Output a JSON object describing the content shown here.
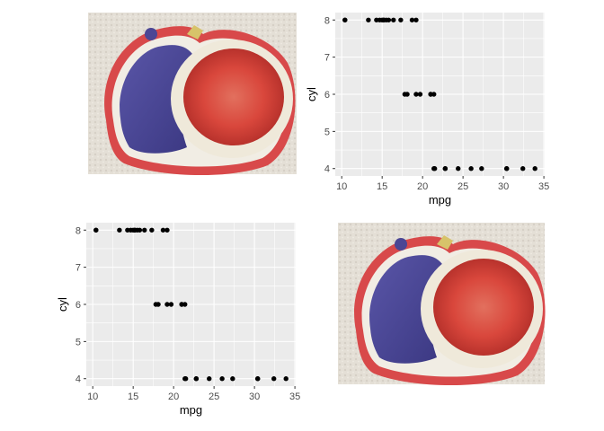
{
  "colors": {
    "panel_background": "#ebebeb",
    "gridline": "#ffffff",
    "point": "#000000",
    "tick_text": "#4d4d4d",
    "axis_title": "#000000"
  },
  "images": [
    {
      "name": "fig-embroidery-image",
      "description": "embroidered patch of a sliced fig"
    },
    {
      "name": "fig-embroidery-image",
      "description": "embroidered patch of a sliced fig"
    }
  ],
  "chart_data": [
    {
      "type": "scatter",
      "title": "",
      "xlabel": "mpg",
      "ylabel": "cyl",
      "xlim": [
        9.2,
        35.1
      ],
      "ylim": [
        3.8,
        8.2
      ],
      "xticks": [
        10,
        15,
        20,
        25,
        30,
        35
      ],
      "yticks": [
        4,
        5,
        6,
        7,
        8
      ],
      "grid": true,
      "legend": "none",
      "points": [
        {
          "x": 21.0,
          "y": 6
        },
        {
          "x": 21.0,
          "y": 6
        },
        {
          "x": 22.8,
          "y": 4
        },
        {
          "x": 21.4,
          "y": 6
        },
        {
          "x": 18.7,
          "y": 8
        },
        {
          "x": 18.1,
          "y": 6
        },
        {
          "x": 14.3,
          "y": 8
        },
        {
          "x": 24.4,
          "y": 4
        },
        {
          "x": 22.8,
          "y": 4
        },
        {
          "x": 19.2,
          "y": 6
        },
        {
          "x": 17.8,
          "y": 6
        },
        {
          "x": 16.4,
          "y": 8
        },
        {
          "x": 17.3,
          "y": 8
        },
        {
          "x": 15.2,
          "y": 8
        },
        {
          "x": 10.4,
          "y": 8
        },
        {
          "x": 10.4,
          "y": 8
        },
        {
          "x": 14.7,
          "y": 8
        },
        {
          "x": 32.4,
          "y": 4
        },
        {
          "x": 30.4,
          "y": 4
        },
        {
          "x": 33.9,
          "y": 4
        },
        {
          "x": 21.5,
          "y": 4
        },
        {
          "x": 15.5,
          "y": 8
        },
        {
          "x": 15.2,
          "y": 8
        },
        {
          "x": 13.3,
          "y": 8
        },
        {
          "x": 19.2,
          "y": 8
        },
        {
          "x": 27.3,
          "y": 4
        },
        {
          "x": 26.0,
          "y": 4
        },
        {
          "x": 30.4,
          "y": 4
        },
        {
          "x": 15.8,
          "y": 8
        },
        {
          "x": 19.7,
          "y": 6
        },
        {
          "x": 15.0,
          "y": 8
        },
        {
          "x": 21.4,
          "y": 4
        }
      ]
    },
    {
      "type": "scatter",
      "title": "",
      "xlabel": "mpg",
      "ylabel": "cyl",
      "xlim": [
        9.2,
        35.1
      ],
      "ylim": [
        3.8,
        8.2
      ],
      "xticks": [
        10,
        15,
        20,
        25,
        30,
        35
      ],
      "yticks": [
        4,
        5,
        6,
        7,
        8
      ],
      "grid": true,
      "legend": "none",
      "points": [
        {
          "x": 21.0,
          "y": 6
        },
        {
          "x": 21.0,
          "y": 6
        },
        {
          "x": 22.8,
          "y": 4
        },
        {
          "x": 21.4,
          "y": 6
        },
        {
          "x": 18.7,
          "y": 8
        },
        {
          "x": 18.1,
          "y": 6
        },
        {
          "x": 14.3,
          "y": 8
        },
        {
          "x": 24.4,
          "y": 4
        },
        {
          "x": 22.8,
          "y": 4
        },
        {
          "x": 19.2,
          "y": 6
        },
        {
          "x": 17.8,
          "y": 6
        },
        {
          "x": 16.4,
          "y": 8
        },
        {
          "x": 17.3,
          "y": 8
        },
        {
          "x": 15.2,
          "y": 8
        },
        {
          "x": 10.4,
          "y": 8
        },
        {
          "x": 10.4,
          "y": 8
        },
        {
          "x": 14.7,
          "y": 8
        },
        {
          "x": 32.4,
          "y": 4
        },
        {
          "x": 30.4,
          "y": 4
        },
        {
          "x": 33.9,
          "y": 4
        },
        {
          "x": 21.5,
          "y": 4
        },
        {
          "x": 15.5,
          "y": 8
        },
        {
          "x": 15.2,
          "y": 8
        },
        {
          "x": 13.3,
          "y": 8
        },
        {
          "x": 19.2,
          "y": 8
        },
        {
          "x": 27.3,
          "y": 4
        },
        {
          "x": 26.0,
          "y": 4
        },
        {
          "x": 30.4,
          "y": 4
        },
        {
          "x": 15.8,
          "y": 8
        },
        {
          "x": 19.7,
          "y": 6
        },
        {
          "x": 15.0,
          "y": 8
        },
        {
          "x": 21.4,
          "y": 4
        }
      ]
    }
  ]
}
